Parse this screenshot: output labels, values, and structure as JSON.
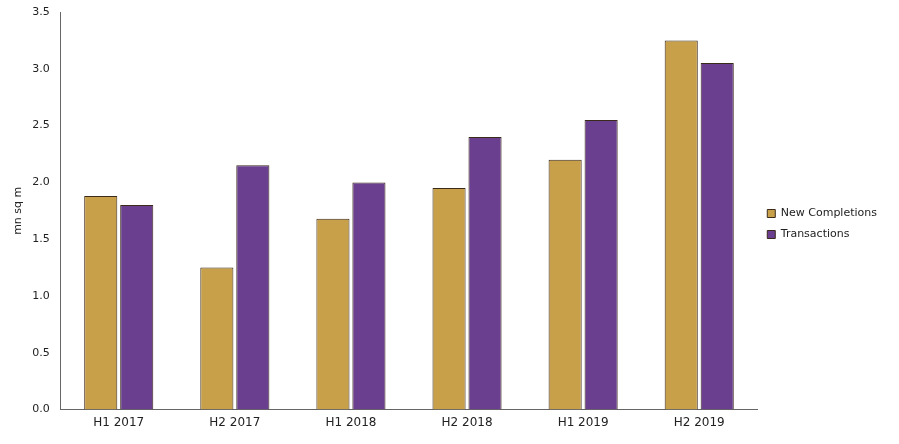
{
  "chart_data": {
    "type": "bar",
    "ylabel": "mn sq m",
    "categories": [
      "H1 2017",
      "H2 2017",
      "H1 2018",
      "H2 2018",
      "H1 2019",
      "H2 2019"
    ],
    "series": [
      {
        "name": "New Completions",
        "color": "#c9a04a",
        "values": [
          1.88,
          1.25,
          1.68,
          1.95,
          2.2,
          3.25
        ]
      },
      {
        "name": "Transactions",
        "color": "#6b3f8f",
        "values": [
          1.8,
          2.15,
          2.0,
          2.4,
          2.55,
          3.05
        ]
      }
    ],
    "ylim": [
      0,
      3.5
    ],
    "yticks": [
      {
        "value": 0,
        "label": "0.0"
      },
      0.5,
      {
        "value": 1,
        "label": "1.0"
      },
      1.5,
      {
        "value": 2,
        "label": "2.0"
      },
      2.5,
      {
        "value": 3,
        "label": "3.0"
      },
      3.5
    ],
    "grid": false,
    "legend": "right"
  }
}
